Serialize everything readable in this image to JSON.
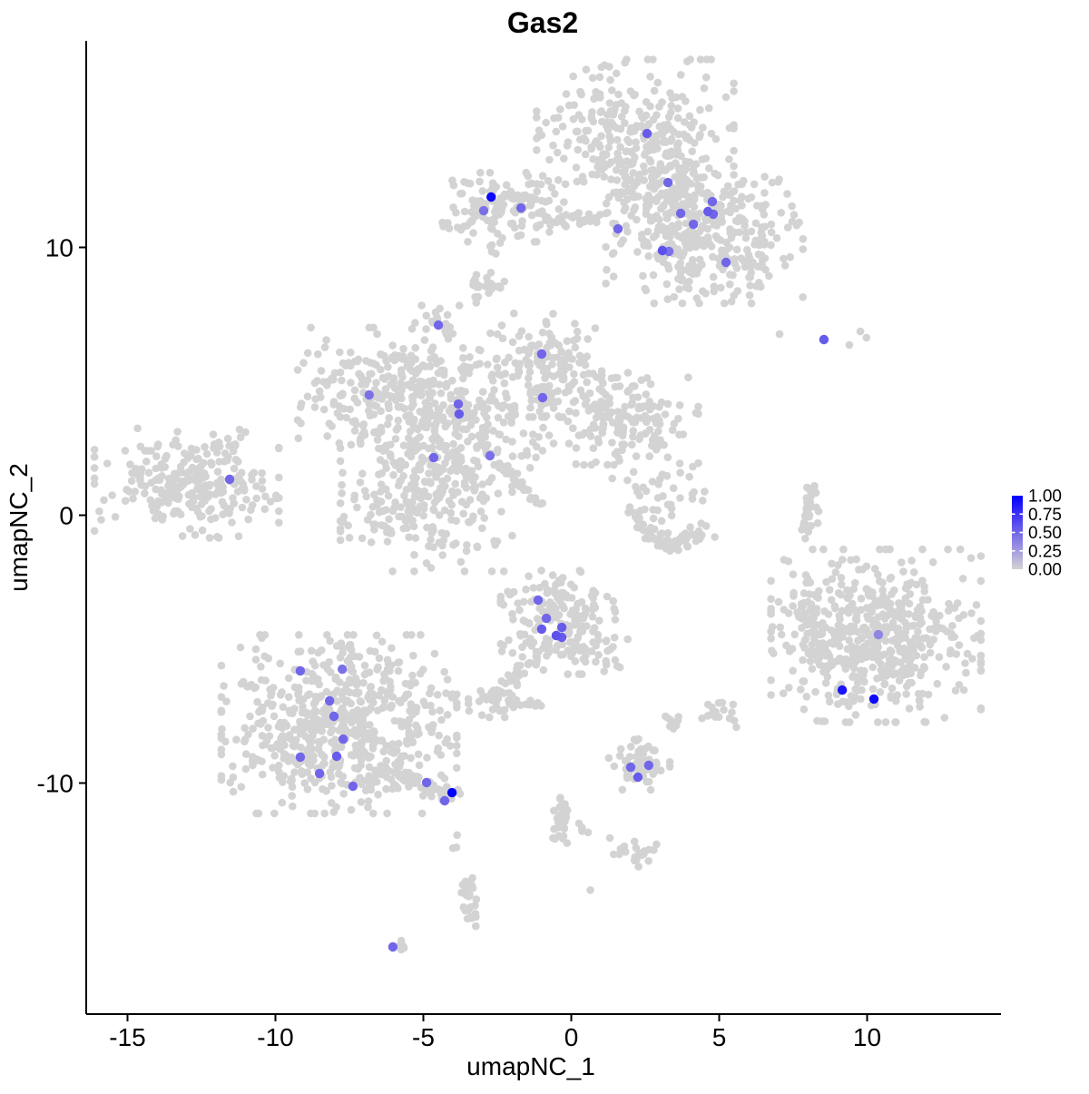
{
  "title": "Gas2",
  "axes": {
    "x": {
      "label": "umapNC_1",
      "ticks": [
        -15,
        -10,
        -5,
        0,
        5,
        10
      ],
      "range": [
        -16.4,
        14.5
      ]
    },
    "y": {
      "label": "umapNC_2",
      "ticks": [
        10,
        0,
        -10
      ],
      "range": [
        -18.6,
        17.7
      ]
    }
  },
  "legend": {
    "tick_labels": [
      "1.00",
      "0.75",
      "0.50",
      "0.25",
      "0.00"
    ],
    "tick_values": [
      1.0,
      0.75,
      0.5,
      0.25,
      0.0
    ],
    "low_color": "#D3D3D3",
    "high_color": "#0000FF"
  },
  "colors": {
    "background_cell": "#D3D3D3",
    "axis": "#000000"
  },
  "chart_data": {
    "type": "scatter",
    "title": "Gas2",
    "xlabel": "umapNC_1",
    "ylabel": "umapNC_2",
    "xlim": [
      -16.4,
      14.5
    ],
    "ylim": [
      -18.6,
      17.7
    ],
    "grid": false,
    "legend_position": "right",
    "color_scale": {
      "low": "#D3D3D3",
      "high": "#0000FF",
      "domain": [
        0,
        1
      ],
      "breaks": [
        0,
        0.25,
        0.5,
        0.75,
        1.0
      ]
    },
    "background_clusters": [
      {
        "name": "top-upper-lobe",
        "type": "gauss",
        "n": 330,
        "cx": 2.16,
        "cy": 13.9,
        "sx": 1.55,
        "sy": 1.45
      },
      {
        "name": "top-lower-right-lobe",
        "type": "gauss",
        "n": 300,
        "cx": 4.5,
        "cy": 10.6,
        "sx": 1.55,
        "sy": 1.25
      },
      {
        "name": "top-bridge",
        "type": "gauss",
        "n": 90,
        "cx": 2.9,
        "cy": 12.1,
        "sx": 0.85,
        "sy": 0.85
      },
      {
        "name": "top-right-tip",
        "type": "gauss",
        "n": 20,
        "cx": 6.1,
        "cy": 9.5,
        "sx": 0.5,
        "sy": 0.45
      },
      {
        "name": "arm-blob",
        "type": "gauss",
        "n": 115,
        "cx": -2.3,
        "cy": 11.5,
        "sx": 0.8,
        "sy": 0.6
      },
      {
        "name": "arm-line",
        "type": "line",
        "n": 35,
        "x1": -1.2,
        "y1": 11.1,
        "x2": 0.95,
        "y2": 11.0,
        "jitter": 0.14
      },
      {
        "name": "arm-hook",
        "type": "gauss",
        "n": 8,
        "cx": -3.9,
        "cy": 10.8,
        "sx": 0.3,
        "sy": 0.15
      },
      {
        "name": "arm-below-dots",
        "type": "gauss",
        "n": 6,
        "cx": -2.6,
        "cy": 10.1,
        "sx": 0.12,
        "sy": 0.3
      },
      {
        "name": "small-blob-upper",
        "type": "gauss",
        "n": 24,
        "cx": -3.0,
        "cy": 8.45,
        "sx": 0.36,
        "sy": 0.34
      },
      {
        "name": "small-blob-lower",
        "type": "gauss",
        "n": 20,
        "cx": -4.6,
        "cy": 7.2,
        "sx": 0.38,
        "sy": 0.33
      },
      {
        "name": "small-blob-trail",
        "type": "gauss",
        "n": 5,
        "cx": -4.75,
        "cy": 6.2,
        "sx": 0.12,
        "sy": 0.35
      },
      {
        "name": "central-left-lobe",
        "type": "gauss",
        "n": 200,
        "cx": -6.45,
        "cy": 4.75,
        "sx": 1.3,
        "sy": 1.05
      },
      {
        "name": "central-core",
        "type": "gauss",
        "n": 240,
        "cx": -3.8,
        "cy": 3.6,
        "sx": 1.3,
        "sy": 1.2
      },
      {
        "name": "central-top-arm",
        "type": "gauss",
        "n": 130,
        "cx": -0.9,
        "cy": 5.6,
        "sx": 0.9,
        "sy": 0.9
      },
      {
        "name": "central-right-arm",
        "type": "gauss",
        "n": 180,
        "cx": 1.5,
        "cy": 3.6,
        "sx": 1.3,
        "sy": 0.8
      },
      {
        "name": "central-bottom-lobe",
        "type": "gauss",
        "n": 260,
        "cx": -4.9,
        "cy": 0.7,
        "sx": 1.35,
        "sy": 1.3
      },
      {
        "name": "central-streak",
        "type": "line",
        "n": 35,
        "x1": -2.45,
        "y1": 1.9,
        "x2": -1.0,
        "y2": 0.35,
        "jitter": 0.08
      },
      {
        "name": "central-right-sparse",
        "type": "gauss",
        "n": 15,
        "cx": 2.6,
        "cy": 2.8,
        "sx": 0.55,
        "sy": 0.55
      },
      {
        "name": "far-left-cluster",
        "type": "gauss",
        "n": 240,
        "cx": -13.0,
        "cy": 1.2,
        "sx": 1.45,
        "sy": 0.95
      },
      {
        "name": "far-left-tip",
        "type": "gauss",
        "n": 10,
        "cx": -10.9,
        "cy": 1.35,
        "sx": 0.25,
        "sy": 0.2
      },
      {
        "name": "far-left-top-ext",
        "type": "gauss",
        "n": 10,
        "cx": -11.6,
        "cy": 2.55,
        "sx": 0.25,
        "sy": 0.3
      },
      {
        "name": "mid-right-arc-a",
        "type": "line",
        "n": 30,
        "x1": 2.0,
        "y1": 0.0,
        "x2": 3.3,
        "y2": -1.15,
        "jitter": 0.18
      },
      {
        "name": "mid-right-arc-b",
        "type": "line",
        "n": 30,
        "x1": 3.3,
        "y1": -1.15,
        "x2": 4.5,
        "y2": -0.55,
        "jitter": 0.18
      },
      {
        "name": "mid-right-scatter",
        "type": "gauss",
        "n": 35,
        "cx": 3.0,
        "cy": 0.8,
        "sx": 0.75,
        "sy": 0.7
      },
      {
        "name": "thin-vertical-line",
        "type": "line",
        "n": 30,
        "x1": 8.15,
        "y1": 1.2,
        "x2": 7.9,
        "y2": -0.8,
        "jitter": 0.08
      },
      {
        "name": "thin-line-dots",
        "type": "gauss",
        "n": 3,
        "cx": 8.4,
        "cy": -0.2,
        "sx": 0.1,
        "sy": 0.5
      },
      {
        "name": "right-cluster",
        "type": "gauss",
        "n": 520,
        "cx": 10.3,
        "cy": -4.5,
        "sx": 1.65,
        "sy": 1.5
      },
      {
        "name": "right-appendage",
        "type": "gauss",
        "n": 35,
        "cx": 8.25,
        "cy": -5.0,
        "sx": 0.4,
        "sy": 0.7
      },
      {
        "name": "right-sparse-top",
        "type": "gauss",
        "n": 7,
        "cx": 7.6,
        "cy": -3.1,
        "sx": 0.35,
        "sy": 0.55
      },
      {
        "name": "center-bottom-main",
        "type": "gauss",
        "n": 150,
        "cx": -0.45,
        "cy": -4.0,
        "sx": 0.9,
        "sy": 0.9
      },
      {
        "name": "center-bottom-tip",
        "type": "gauss",
        "n": 18,
        "cx": -0.6,
        "cy": -2.85,
        "sx": 0.3,
        "sy": 0.3
      },
      {
        "name": "center-bottom-right-arm",
        "type": "gauss",
        "n": 28,
        "cx": 1.1,
        "cy": -5.0,
        "sx": 0.45,
        "sy": 0.4
      },
      {
        "name": "center-bottom-tail",
        "type": "line",
        "n": 20,
        "x1": -1.15,
        "y1": -5.25,
        "x2": -2.25,
        "y2": -6.3,
        "jitter": 0.1
      },
      {
        "name": "blob-left-mid",
        "type": "gauss",
        "n": 45,
        "cx": -2.4,
        "cy": -6.9,
        "sx": 0.5,
        "sy": 0.3
      },
      {
        "name": "blob-left-mid-dots",
        "type": "gauss",
        "n": 4,
        "cx": -1.15,
        "cy": -7.2,
        "sx": 0.25,
        "sy": 0.2
      },
      {
        "name": "blob-small-m",
        "type": "gauss",
        "n": 10,
        "cx": 3.45,
        "cy": -7.65,
        "sx": 0.17,
        "sy": 0.2
      },
      {
        "name": "blob-small-n",
        "type": "gauss",
        "n": 16,
        "cx": 5.0,
        "cy": -7.35,
        "sx": 0.27,
        "sy": 0.27
      },
      {
        "name": "bottom-left-main",
        "type": "gauss",
        "n": 650,
        "cx": -7.85,
        "cy": -7.8,
        "sx": 1.85,
        "sy": 1.55
      },
      {
        "name": "bottom-left-tail",
        "type": "line",
        "n": 45,
        "x1": -6.05,
        "y1": -9.65,
        "x2": -3.75,
        "y2": -10.6,
        "jitter": 0.13
      },
      {
        "name": "small-cluster-p",
        "type": "gauss",
        "n": 55,
        "cx": 2.3,
        "cy": -9.35,
        "sx": 0.48,
        "sy": 0.42
      },
      {
        "name": "small-cluster-p-above",
        "type": "gauss",
        "n": 4,
        "cx": 2.3,
        "cy": -8.5,
        "sx": 0.13,
        "sy": 0.2
      },
      {
        "name": "squiggle-center",
        "type": "line",
        "n": 35,
        "x1": -0.27,
        "y1": -10.45,
        "x2": -0.38,
        "y2": -12.1,
        "jitter": 0.13
      },
      {
        "name": "squiggle-center-dots",
        "type": "gauss",
        "n": 5,
        "cx": 0.6,
        "cy": -11.8,
        "sx": 0.22,
        "sy": 0.18
      },
      {
        "name": "squiggle-blob",
        "type": "gauss",
        "n": 22,
        "cx": 2.25,
        "cy": -12.65,
        "sx": 0.38,
        "sy": 0.22
      },
      {
        "name": "single-dot-a",
        "type": "gauss",
        "n": 1,
        "cx": 1.3,
        "cy": -12.05,
        "sx": 0.01,
        "sy": 0.01
      },
      {
        "name": "squiggle-left",
        "type": "line",
        "n": 30,
        "x1": -3.5,
        "y1": -13.6,
        "x2": -3.35,
        "y2": -15.35,
        "jitter": 0.12
      },
      {
        "name": "squiggle-left-above",
        "type": "gauss",
        "n": 3,
        "cx": -3.9,
        "cy": -12.0,
        "sx": 0.08,
        "sy": 0.2
      },
      {
        "name": "bottom-tiny-blob",
        "type": "gauss",
        "n": 5,
        "cx": -5.8,
        "cy": -16.1,
        "sx": 0.12,
        "sy": 0.1
      },
      {
        "name": "single-dot-b",
        "type": "gauss",
        "n": 1,
        "cx": 0.65,
        "cy": -14.0,
        "sx": 0.01,
        "sy": 0.01
      }
    ],
    "extra_background_points": [
      [
        7.04,
        6.76
      ],
      [
        9.4,
        6.36
      ],
      [
        9.77,
        6.86
      ],
      [
        9.98,
        6.63
      ]
    ],
    "expressing_cells": [
      {
        "x": 2.56,
        "y": 14.25,
        "value": 0.55
      },
      {
        "x": 3.27,
        "y": 12.42,
        "value": 0.5
      },
      {
        "x": 4.77,
        "y": 11.71,
        "value": 0.5
      },
      {
        "x": 4.62,
        "y": 11.34,
        "value": 0.55
      },
      {
        "x": 4.8,
        "y": 11.24,
        "value": 0.5
      },
      {
        "x": 3.7,
        "y": 11.27,
        "value": 0.5
      },
      {
        "x": 4.13,
        "y": 10.86,
        "value": 0.5
      },
      {
        "x": 1.58,
        "y": 10.69,
        "value": 0.5
      },
      {
        "x": 3.08,
        "y": 9.88,
        "value": 0.6
      },
      {
        "x": 3.3,
        "y": 9.85,
        "value": 0.45
      },
      {
        "x": 5.23,
        "y": 9.44,
        "value": 0.5
      },
      {
        "x": -2.71,
        "y": 11.88,
        "value": 0.95
      },
      {
        "x": -2.96,
        "y": 11.37,
        "value": 0.45
      },
      {
        "x": -1.7,
        "y": 11.47,
        "value": 0.5
      },
      {
        "x": -4.49,
        "y": 7.1,
        "value": 0.5
      },
      {
        "x": -1.0,
        "y": 6.02,
        "value": 0.5
      },
      {
        "x": -6.83,
        "y": 4.49,
        "value": 0.45
      },
      {
        "x": -3.82,
        "y": 4.15,
        "value": 0.5
      },
      {
        "x": -3.79,
        "y": 3.78,
        "value": 0.55
      },
      {
        "x": -0.97,
        "y": 4.39,
        "value": 0.5
      },
      {
        "x": -4.65,
        "y": 2.15,
        "value": 0.5
      },
      {
        "x": -2.75,
        "y": 2.22,
        "value": 0.45
      },
      {
        "x": -11.55,
        "y": 1.34,
        "value": 0.5
      },
      {
        "x": 8.54,
        "y": 6.56,
        "value": 0.55
      },
      {
        "x": 10.38,
        "y": -4.46,
        "value": 0.35
      },
      {
        "x": 9.16,
        "y": -6.53,
        "value": 0.9
      },
      {
        "x": 10.23,
        "y": -6.86,
        "value": 0.95
      },
      {
        "x": -1.12,
        "y": -3.17,
        "value": 0.5
      },
      {
        "x": -0.84,
        "y": -3.85,
        "value": 0.5
      },
      {
        "x": -1.0,
        "y": -4.25,
        "value": 0.55
      },
      {
        "x": -0.32,
        "y": -4.19,
        "value": 0.55
      },
      {
        "x": -0.51,
        "y": -4.49,
        "value": 0.6
      },
      {
        "x": -0.32,
        "y": -4.56,
        "value": 0.55
      },
      {
        "x": -9.16,
        "y": -5.81,
        "value": 0.5
      },
      {
        "x": -7.74,
        "y": -5.75,
        "value": 0.45
      },
      {
        "x": -8.17,
        "y": -6.93,
        "value": 0.5
      },
      {
        "x": -8.02,
        "y": -7.51,
        "value": 0.5
      },
      {
        "x": -7.71,
        "y": -8.36,
        "value": 0.5
      },
      {
        "x": -9.16,
        "y": -9.03,
        "value": 0.5
      },
      {
        "x": -7.93,
        "y": -9.0,
        "value": 0.55
      },
      {
        "x": -8.51,
        "y": -9.64,
        "value": 0.5
      },
      {
        "x": -7.38,
        "y": -10.12,
        "value": 0.5
      },
      {
        "x": -4.89,
        "y": -9.98,
        "value": 0.5
      },
      {
        "x": -4.03,
        "y": -10.36,
        "value": 1.0
      },
      {
        "x": -4.28,
        "y": -10.66,
        "value": 0.5
      },
      {
        "x": 2.01,
        "y": -9.41,
        "value": 0.5
      },
      {
        "x": 2.62,
        "y": -9.34,
        "value": 0.5
      },
      {
        "x": 2.25,
        "y": -9.78,
        "value": 0.55
      },
      {
        "x": -6.03,
        "y": -16.12,
        "value": 0.5
      }
    ]
  }
}
